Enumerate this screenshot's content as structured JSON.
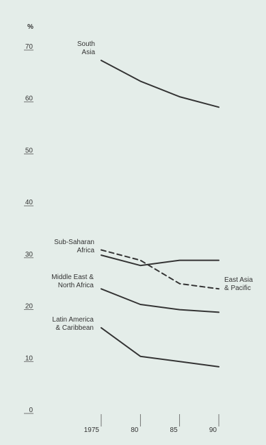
{
  "chart_data": {
    "type": "line",
    "ylabel": "%",
    "ylim": [
      0,
      70
    ],
    "yticks": [
      "70",
      "60",
      "50",
      "40",
      "30",
      "20",
      "10",
      "0"
    ],
    "xticks": [
      "1975",
      "80",
      "85",
      "90"
    ],
    "x": [
      1975,
      1980,
      1985,
      1990
    ],
    "grid": false,
    "series": [
      {
        "name": "South Asia",
        "label_lines": [
          "South",
          "Asia"
        ],
        "values": [
          68,
          64,
          61,
          59
        ],
        "style": "solid",
        "color": "#333333"
      },
      {
        "name": "Sub-Saharan Africa",
        "label_lines": [
          "Sub-Saharan",
          "Africa"
        ],
        "values": [
          30.5,
          28.5,
          29.5,
          29.5
        ],
        "style": "solid",
        "color": "#333333"
      },
      {
        "name": "East Asia & Pacific",
        "label_lines": [
          "East Asia",
          "& Pacific"
        ],
        "values": [
          31.5,
          29.5,
          25,
          24
        ],
        "style": "dashed",
        "color": "#333333"
      },
      {
        "name": "Middle East & North Africa",
        "label_lines": [
          "Middle East &",
          "North Africa"
        ],
        "values": [
          24,
          21,
          20,
          19.5
        ],
        "style": "solid",
        "color": "#333333"
      },
      {
        "name": "Latin America & Caribbean",
        "label_lines": [
          "Latin America",
          "& Caribbean"
        ],
        "values": [
          16.5,
          11,
          10,
          9
        ],
        "style": "solid",
        "color": "#333333"
      }
    ]
  }
}
